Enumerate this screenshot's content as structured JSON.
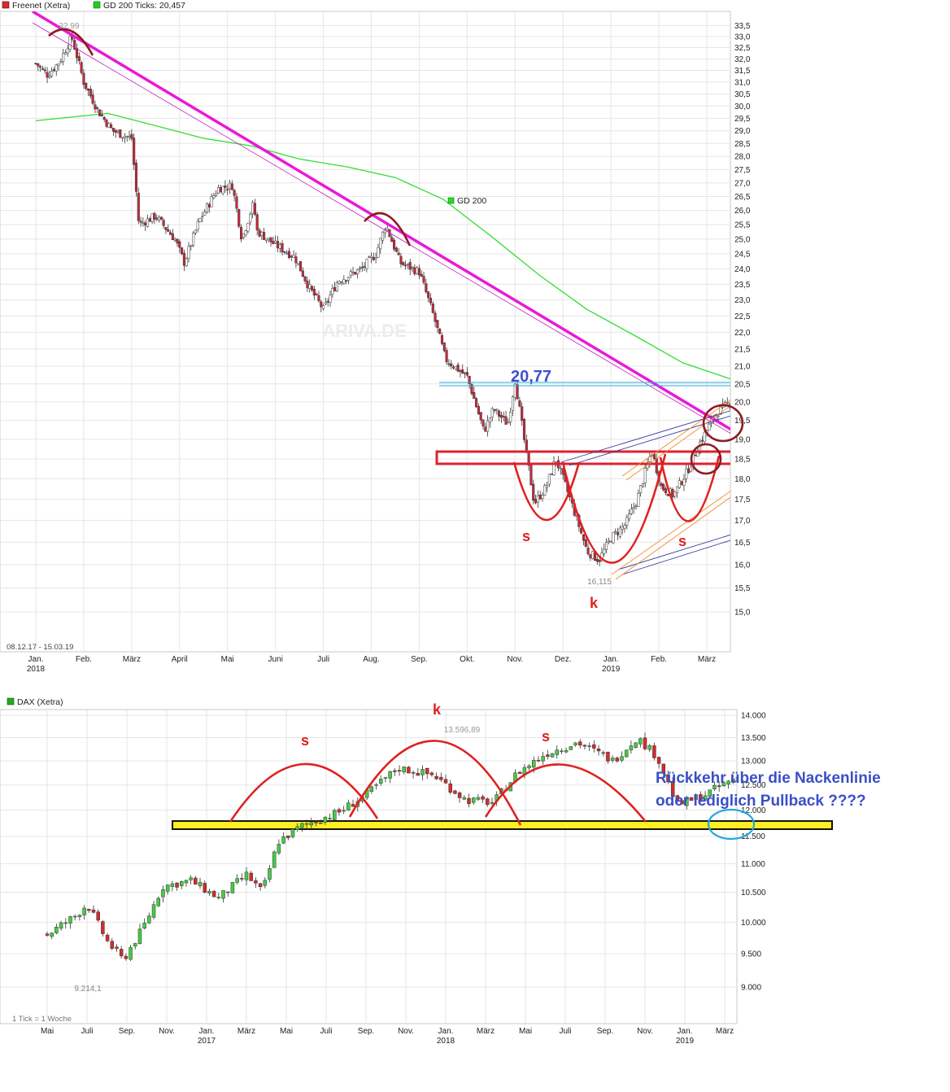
{
  "top": {
    "legend": [
      {
        "label": "Freenet (Xetra)",
        "color": "#d42c2c"
      },
      {
        "label": "GD 200 Ticks: 20,457",
        "color": "#22cc22"
      }
    ],
    "period": "08.12.17 - 15.03.19",
    "watermark": "ARIVA.DE",
    "ma_label": "GD 200",
    "high_label": "32,99",
    "low_label": "16,115",
    "resistance_label": "20,77",
    "annotations": {
      "left_shoulder": "s",
      "head": "k",
      "right_shoulder": "s"
    }
  },
  "bottom": {
    "legend": [
      {
        "label": "DAX (Xetra)",
        "color": "#22aa22"
      }
    ],
    "tick_note": "1 Tick = 1 Woche",
    "high_label": "13.596,89",
    "low_label": "9.214,1",
    "annotations": {
      "left_shoulder": "s",
      "head": "k",
      "right_shoulder": "s"
    },
    "question": [
      "Rückkehr über die Nackenlinie",
      "oder lediglich Pullback ????"
    ]
  },
  "chart_data": [
    {
      "type": "candlestick",
      "title": "Freenet (Xetra)",
      "x_ticks": [
        "Jan.",
        "Feb.",
        "März",
        "April",
        "Mai",
        "Juni",
        "Juli",
        "Aug.",
        "Sep.",
        "Okt.",
        "Nov.",
        "Dez.",
        "Jan.",
        "Feb.",
        "März"
      ],
      "x_year_labels": [
        "2018",
        "2019"
      ],
      "y_ticks": [
        "15,0",
        "15,5",
        "16,0",
        "16,5",
        "17,0",
        "17,5",
        "18,0",
        "18,5",
        "19,0",
        "19,5",
        "20,0",
        "20,5",
        "21,0",
        "21,5",
        "22,0",
        "22,5",
        "23,0",
        "23,5",
        "24,0",
        "24,5",
        "25,0",
        "25,5",
        "26,0",
        "26,5",
        "27,0",
        "27,5",
        "28,0",
        "28,5",
        "29,0",
        "29,5",
        "30,0",
        "30,5",
        "31,0",
        "31,5",
        "32,0",
        "32,5",
        "33,0",
        "33,5"
      ],
      "ylim": [
        14.7,
        33.7
      ],
      "log_scale": true,
      "grid": true,
      "price_path": [
        [
          0,
          31.8
        ],
        [
          0.25,
          31.3
        ],
        [
          0.5,
          31.9
        ],
        [
          0.75,
          32.99
        ],
        [
          1.0,
          31.0
        ],
        [
          1.3,
          29.8
        ],
        [
          1.6,
          29.0
        ],
        [
          2.0,
          28.7
        ],
        [
          2.15,
          25.5
        ],
        [
          2.5,
          25.8
        ],
        [
          2.9,
          25.0
        ],
        [
          3.1,
          24.2
        ],
        [
          3.4,
          25.6
        ],
        [
          3.8,
          26.8
        ],
        [
          4.1,
          26.9
        ],
        [
          4.3,
          25.0
        ],
        [
          4.55,
          26.3
        ],
        [
          4.6,
          25.3
        ],
        [
          5.0,
          24.8
        ],
        [
          5.4,
          24.4
        ],
        [
          5.7,
          23.4
        ],
        [
          6.0,
          22.7
        ],
        [
          6.3,
          23.6
        ],
        [
          6.8,
          24.0
        ],
        [
          7.1,
          24.5
        ],
        [
          7.3,
          25.5
        ],
        [
          7.6,
          24.2
        ],
        [
          8.0,
          23.9
        ],
        [
          8.3,
          22.5
        ],
        [
          8.55,
          21.2
        ],
        [
          9.0,
          20.7
        ],
        [
          9.35,
          19.2
        ],
        [
          9.55,
          19.8
        ],
        [
          9.85,
          19.4
        ],
        [
          10.0,
          20.6
        ],
        [
          10.2,
          18.9
        ],
        [
          10.4,
          17.4
        ],
        [
          10.65,
          17.8
        ],
        [
          10.85,
          18.5
        ],
        [
          11.15,
          17.5
        ],
        [
          11.5,
          16.3
        ],
        [
          11.75,
          16.1
        ],
        [
          12.0,
          16.6
        ],
        [
          12.3,
          16.9
        ],
        [
          12.55,
          17.5
        ],
        [
          12.85,
          18.7
        ],
        [
          13.05,
          17.8
        ],
        [
          13.3,
          17.6
        ],
        [
          13.6,
          18.2
        ],
        [
          13.85,
          18.9
        ],
        [
          14.2,
          19.7
        ],
        [
          14.5,
          20.0
        ]
      ],
      "series": [
        {
          "name": "GD 200",
          "values": [
            [
              0,
              29.4
            ],
            [
              1.5,
              29.7
            ],
            [
              2.5,
              29.2
            ],
            [
              3.5,
              28.7
            ],
            [
              4.5,
              28.4
            ],
            [
              5.5,
              27.9
            ],
            [
              6.5,
              27.6
            ],
            [
              7.5,
              27.2
            ],
            [
              8.5,
              26.4
            ],
            [
              9.5,
              25.1
            ],
            [
              10.5,
              23.8
            ],
            [
              11.5,
              22.7
            ],
            [
              12.5,
              21.9
            ],
            [
              13.5,
              21.1
            ],
            [
              14.8,
              20.5
            ]
          ]
        }
      ],
      "levels": {
        "high": 32.99,
        "low": 16.115,
        "resistance": 20.77
      },
      "patterns": [
        "inverse head and shoulders: s k s"
      ]
    },
    {
      "type": "candlestick",
      "title": "DAX (Xetra)",
      "x_ticks": [
        "Mai",
        "Juli",
        "Sep.",
        "Nov.",
        "Jan.",
        "März",
        "Mai",
        "Juli",
        "Sep.",
        "Nov.",
        "Jan.",
        "März",
        "Mai",
        "Juli",
        "Sep.",
        "Nov.",
        "Jan.",
        "März"
      ],
      "x_year_labels": [
        "2017",
        "2018",
        "2019"
      ],
      "y_ticks": [
        "9.000",
        "9.500",
        "10.000",
        "10.500",
        "11.000",
        "11.500",
        "12.000",
        "12.500",
        "13.000",
        "13.500",
        "14.000"
      ],
      "ylim": [
        8800,
        14150
      ],
      "log_scale": true,
      "grid": true,
      "price_path": [
        [
          0,
          9800
        ],
        [
          0.7,
          10100
        ],
        [
          1.0,
          10300
        ],
        [
          1.5,
          9700
        ],
        [
          1.9,
          9400
        ],
        [
          2.4,
          9900
        ],
        [
          2.9,
          10600
        ],
        [
          3.6,
          10700
        ],
        [
          4.3,
          10400
        ],
        [
          5.0,
          10800
        ],
        [
          5.4,
          10500
        ],
        [
          5.8,
          11400
        ],
        [
          6.4,
          11700
        ],
        [
          7.3,
          11950
        ],
        [
          8.0,
          12300
        ],
        [
          8.8,
          12850
        ],
        [
          9.7,
          12700
        ],
        [
          10.5,
          12200
        ],
        [
          11.2,
          12150
        ],
        [
          11.8,
          12750
        ],
        [
          12.5,
          13150
        ],
        [
          13.3,
          13400
        ],
        [
          14.2,
          13000
        ],
        [
          14.8,
          13500
        ],
        [
          15.3,
          13100
        ],
        [
          15.8,
          12100
        ],
        [
          16.5,
          12300
        ],
        [
          17.4,
          12700
        ],
        [
          18.4,
          12800
        ],
        [
          19.3,
          12500
        ],
        [
          20.2,
          12400
        ],
        [
          21.0,
          12100
        ],
        [
          21.5,
          11600
        ],
        [
          22.1,
          11300
        ],
        [
          22.8,
          11000
        ],
        [
          23.4,
          10600
        ],
        [
          23.9,
          10900
        ],
        [
          24.5,
          11200
        ],
        [
          25.1,
          11500
        ],
        [
          25.6,
          11650
        ]
      ],
      "levels": {
        "high": 13596.89,
        "low": 9214.1,
        "neckline": 11800
      },
      "patterns": [
        "head and shoulders top: s k s"
      ]
    }
  ]
}
